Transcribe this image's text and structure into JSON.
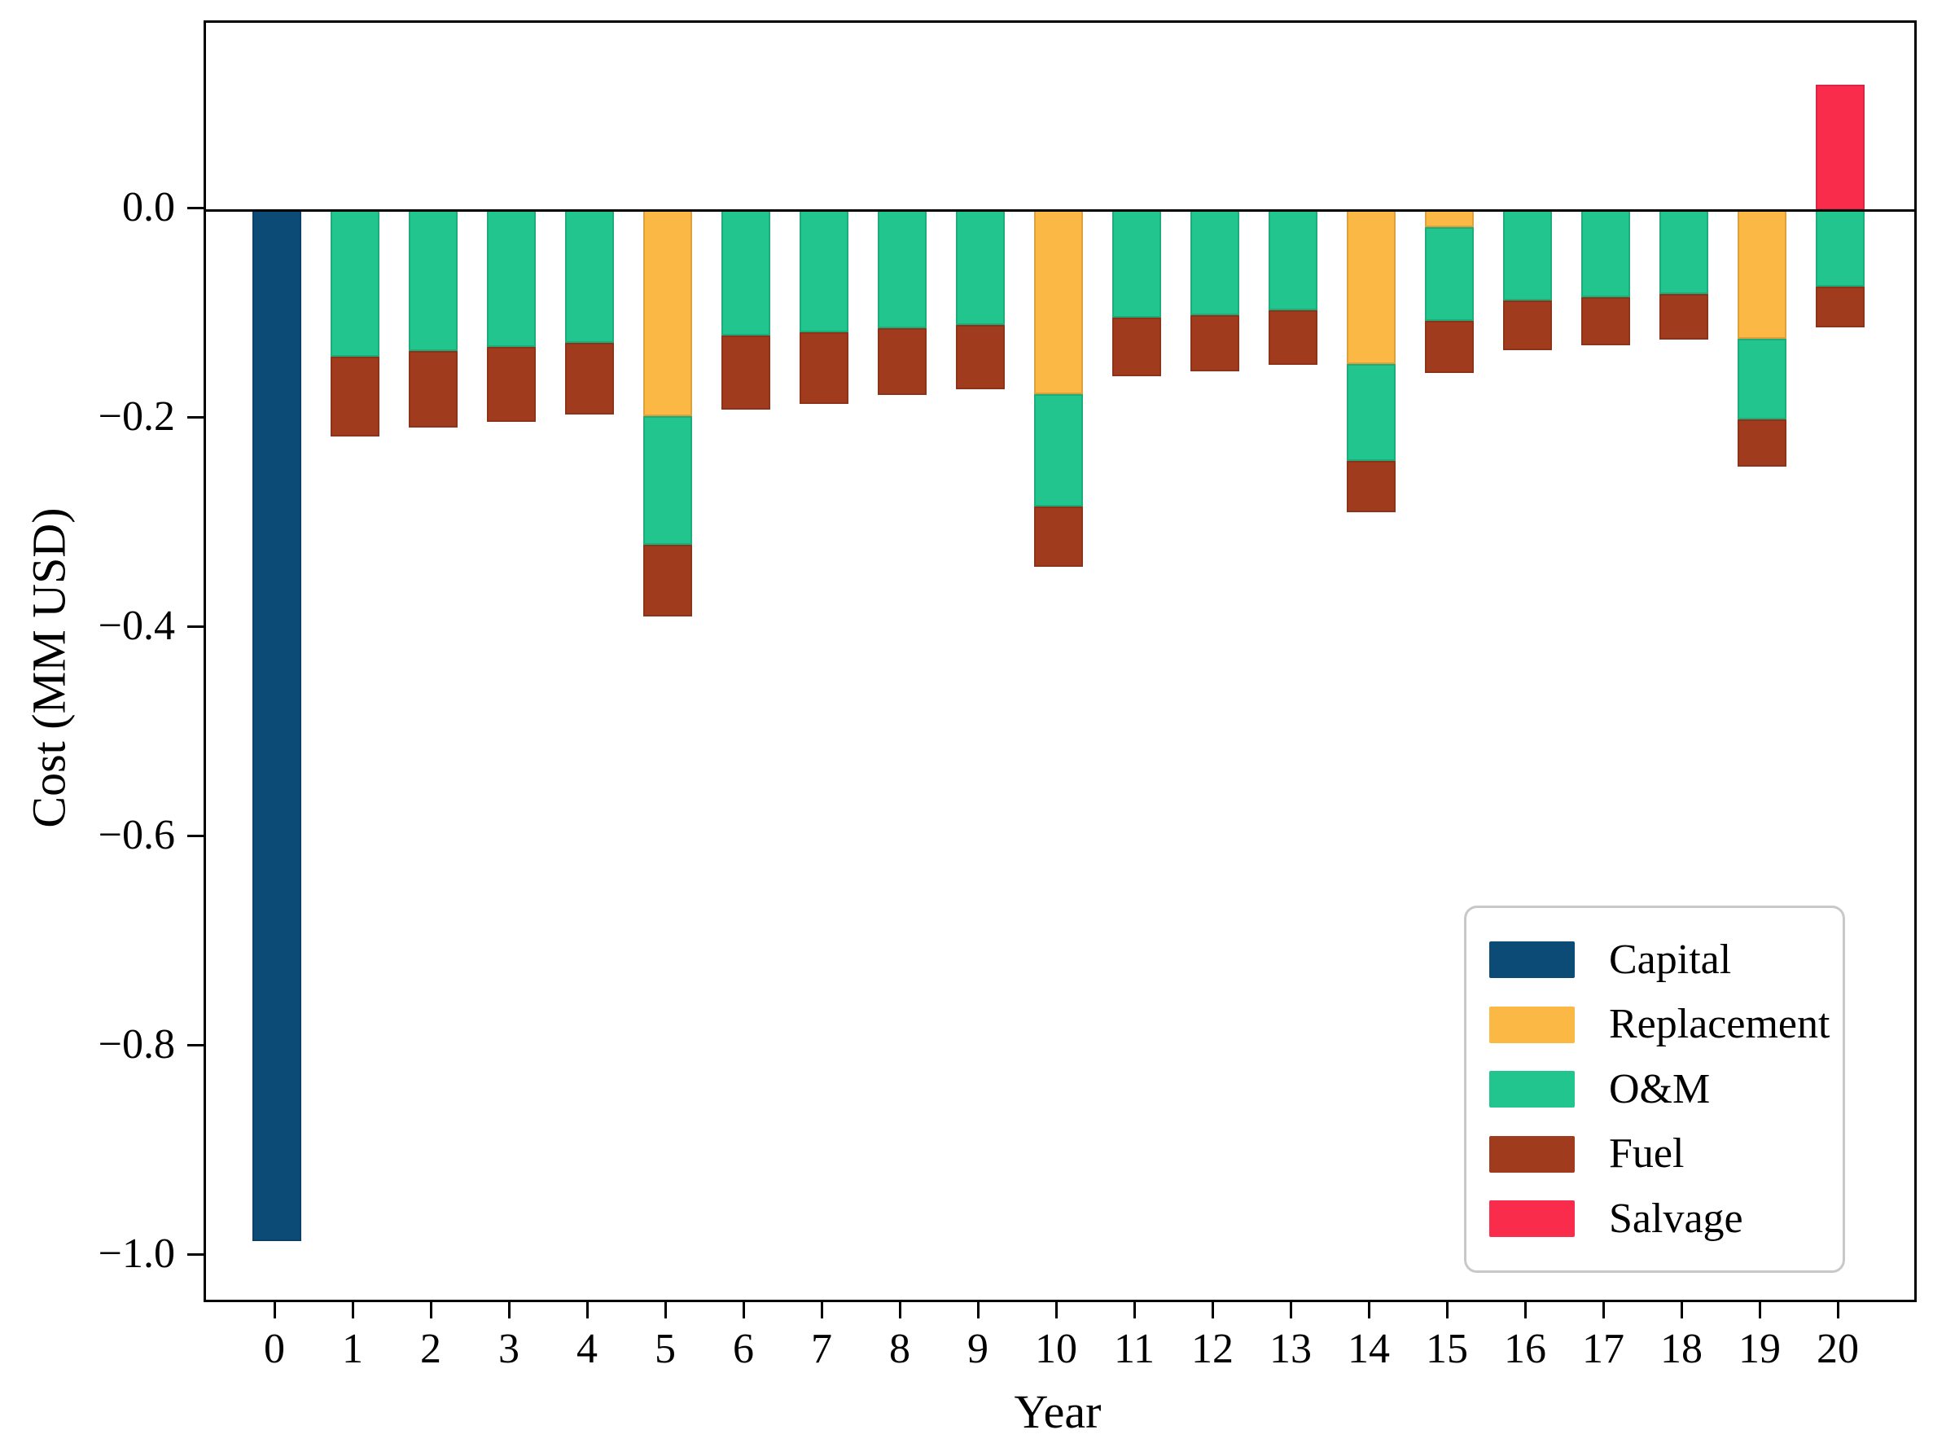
{
  "chart_data": {
    "type": "bar",
    "stacked": true,
    "title": "",
    "xlabel": "Year",
    "ylabel": "Cost (MM USD)",
    "grid": false,
    "legend_position": "lower right",
    "xlim": [
      -0.9,
      20.95
    ],
    "ylim": [
      -1.04,
      0.18
    ],
    "x": [
      0,
      1,
      2,
      3,
      4,
      5,
      6,
      7,
      8,
      9,
      10,
      11,
      12,
      13,
      14,
      15,
      16,
      17,
      18,
      19,
      20
    ],
    "xtick_labels": [
      "0",
      "1",
      "2",
      "3",
      "4",
      "5",
      "6",
      "7",
      "8",
      "9",
      "10",
      "11",
      "12",
      "13",
      "14",
      "15",
      "16",
      "17",
      "18",
      "19",
      "20"
    ],
    "ytick_values": [
      0.0,
      -0.2,
      -0.4,
      -0.6,
      -0.8,
      -1.0
    ],
    "ytick_labels": [
      "0.0",
      "−0.2",
      "−0.4",
      "−0.6",
      "−0.8",
      "−1.0"
    ],
    "series": [
      {
        "name": "Capital",
        "color": "#0d4b77",
        "values": [
          -0.985,
          0,
          0,
          0,
          0,
          0,
          0,
          0,
          0,
          0,
          0,
          0,
          0,
          0,
          0,
          0,
          0,
          0,
          0,
          0,
          0
        ]
      },
      {
        "name": "Replacement",
        "color": "#fbb844",
        "values": [
          0,
          0,
          0,
          0,
          0,
          -0.197,
          0,
          0,
          0,
          0,
          -0.176,
          0,
          0,
          0,
          -0.147,
          -0.016,
          0,
          0,
          0,
          -0.123,
          0
        ]
      },
      {
        "name": "O&M",
        "color": "#21c58d",
        "values": [
          0,
          -0.14,
          -0.135,
          -0.131,
          -0.127,
          -0.123,
          -0.12,
          -0.117,
          -0.113,
          -0.11,
          -0.107,
          -0.103,
          -0.1,
          -0.096,
          -0.093,
          -0.09,
          -0.086,
          -0.083,
          -0.08,
          -0.077,
          -0.073
        ]
      },
      {
        "name": "Fuel",
        "color": "#a13b1d",
        "values": [
          0,
          -0.076,
          -0.073,
          -0.071,
          -0.068,
          -0.068,
          -0.071,
          -0.068,
          -0.064,
          -0.061,
          -0.058,
          -0.056,
          -0.054,
          -0.052,
          -0.049,
          -0.05,
          -0.048,
          -0.046,
          -0.044,
          -0.045,
          -0.039
        ]
      },
      {
        "name": "Salvage",
        "color": "#f92c4c",
        "values": [
          0,
          0,
          0,
          0,
          0,
          0,
          0,
          0,
          0,
          0,
          0,
          0,
          0,
          0,
          0,
          0,
          0,
          0,
          0,
          0,
          0.12
        ]
      }
    ]
  }
}
